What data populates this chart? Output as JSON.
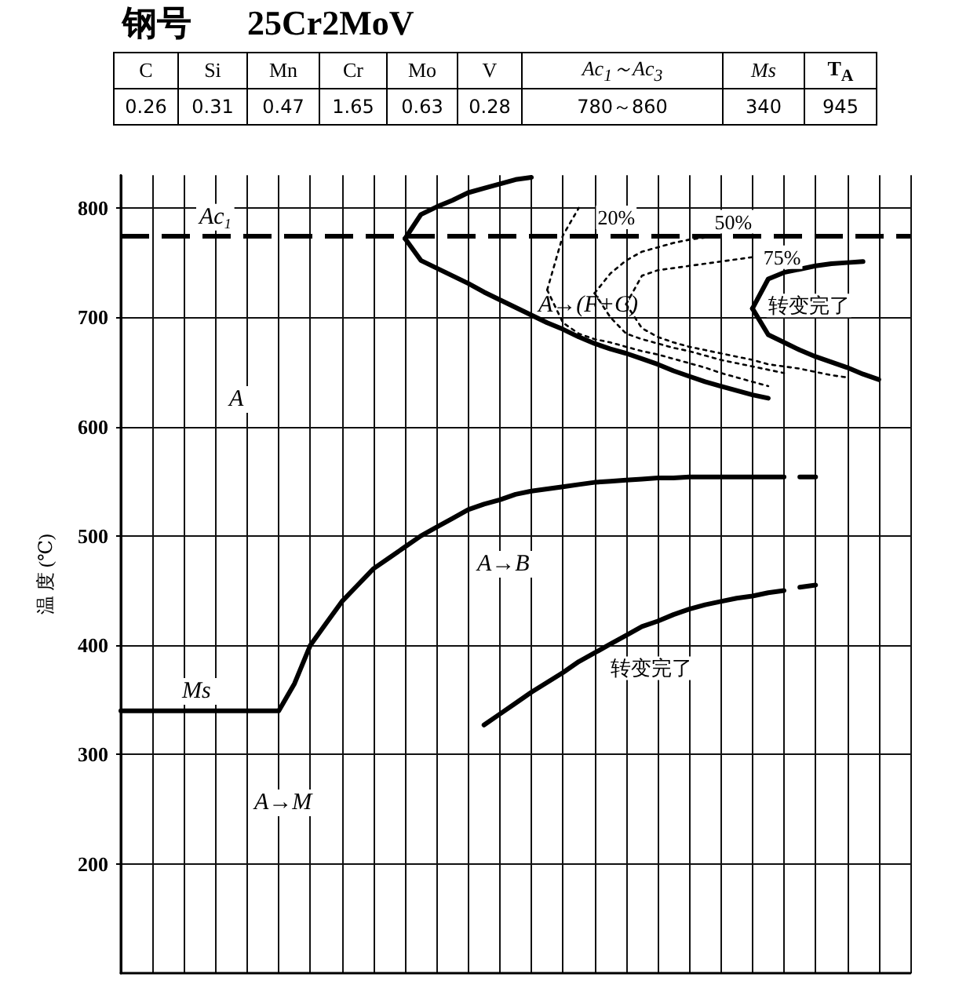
{
  "chart_data": [
    {
      "type": "other",
      "title": "钢号 25Cr2MoV",
      "categories": [
        "C",
        "Si",
        "Mn",
        "Cr",
        "Mo",
        "V",
        "Ac$_{1}$～Ac$_{3}$",
        "Ms",
        "T$_{A}$"
      ],
      "value_labels": [
        "0.26",
        "0.31",
        "0.47",
        "1.65",
        "0.63",
        "0.28",
        "780～860",
        "340",
        "945"
      ]
    },
    {
      "type": "line",
      "ylabel": "温 度 (℃)",
      "tick_labels": "y",
      "grid": true,
      "ylim": [
        100,
        830
      ],
      "yticks": [
        200,
        300,
        400,
        500,
        600,
        700,
        800
      ],
      "categories": [
        null,
        null,
        null,
        null,
        null,
        null,
        null,
        null,
        null,
        null,
        null,
        null,
        null,
        null,
        null,
        null,
        null,
        null,
        null,
        null,
        null,
        null,
        null,
        null,
        null,
        null,
        null,
        null,
        null,
        null,
        null,
        null,
        null,
        null,
        null,
        null,
        null,
        null,
        null,
        null,
        null,
        null,
        null,
        null,
        null,
        null,
        null,
        null,
        null,
        null,
        null
      ],
      "ref_lines": [
        {
          "axis": "y",
          "value": 775,
          "label": "Ac$_{1}$",
          "line_style": "dashed",
          "color": "#000000"
        }
      ],
      "annotations": [
        "A",
        "A→(F+C)",
        "A→B",
        "A→M",
        "Ms"
      ],
      "series": [
        {
          "color": "#000000",
          "line_style": "solid",
          "values": [
            340,
            340,
            340,
            340,
            340,
            340,
            340,
            340,
            340,
            340,
            340,
            365,
            400,
            420,
            440,
            455,
            470,
            480,
            490,
            500,
            508,
            516,
            524,
            529,
            533,
            538,
            541,
            543,
            545,
            547,
            549,
            550,
            551,
            552,
            553,
            553,
            554,
            554,
            554,
            554,
            554,
            554,
            554,
            null,
            null,
            null,
            null,
            null,
            null,
            null,
            null
          ]
        },
        {
          "color": "#000000",
          "line_style": "dashed",
          "values": [
            null,
            null,
            null,
            null,
            null,
            null,
            null,
            null,
            null,
            null,
            null,
            null,
            null,
            null,
            null,
            null,
            null,
            null,
            null,
            null,
            null,
            null,
            null,
            null,
            null,
            null,
            null,
            null,
            null,
            null,
            null,
            null,
            null,
            null,
            null,
            null,
            null,
            null,
            null,
            null,
            null,
            null,
            null,
            554,
            554,
            null,
            null,
            null,
            null,
            null,
            null
          ]
        },
        {
          "name": "转变完了",
          "color": "#000000",
          "line_style": "solid",
          "values": [
            null,
            null,
            null,
            null,
            null,
            null,
            null,
            null,
            null,
            null,
            null,
            null,
            null,
            null,
            null,
            null,
            null,
            null,
            null,
            null,
            null,
            null,
            null,
            327,
            337,
            347,
            357,
            366,
            375,
            385,
            393,
            401,
            409,
            417,
            422,
            428,
            433,
            437,
            440,
            443,
            445,
            448,
            450,
            null,
            null,
            null,
            null,
            null,
            null,
            null,
            null
          ]
        },
        {
          "color": "#000000",
          "line_style": "dashed",
          "values": [
            null,
            null,
            null,
            null,
            null,
            null,
            null,
            null,
            null,
            null,
            null,
            null,
            null,
            null,
            null,
            null,
            null,
            null,
            null,
            null,
            null,
            null,
            null,
            null,
            null,
            null,
            null,
            null,
            null,
            null,
            null,
            null,
            null,
            null,
            null,
            null,
            null,
            null,
            null,
            null,
            null,
            null,
            null,
            453,
            455,
            null,
            null,
            null,
            null,
            null,
            null
          ]
        },
        {
          "color": "#000000",
          "line_style": "solid",
          "values": [
            null,
            null,
            null,
            null,
            null,
            null,
            null,
            null,
            null,
            null,
            null,
            null,
            null,
            null,
            null,
            null,
            null,
            null,
            772,
            794,
            801,
            807,
            814,
            818,
            822,
            826,
            828,
            null,
            null,
            null,
            null,
            null,
            null,
            null,
            null,
            null,
            null,
            null,
            null,
            null,
            null,
            null,
            null,
            null,
            null,
            null,
            null,
            null,
            null,
            null,
            null
          ]
        },
        {
          "color": "#000000",
          "line_style": "solid",
          "values": [
            null,
            null,
            null,
            null,
            null,
            null,
            null,
            null,
            null,
            null,
            null,
            null,
            null,
            null,
            null,
            null,
            null,
            null,
            772,
            752,
            745,
            738,
            731,
            723,
            716,
            709,
            702,
            695,
            689,
            682,
            676,
            671,
            667,
            662,
            657,
            651,
            646,
            641,
            637,
            633,
            629,
            626,
            null,
            null,
            null,
            null,
            null,
            null,
            null,
            null,
            null
          ]
        },
        {
          "name": "转变完了",
          "color": "#000000",
          "line_style": "solid",
          "values": [
            null,
            null,
            null,
            null,
            null,
            null,
            null,
            null,
            null,
            null,
            null,
            null,
            null,
            null,
            null,
            null,
            null,
            null,
            null,
            null,
            null,
            null,
            null,
            null,
            null,
            null,
            null,
            null,
            null,
            null,
            null,
            null,
            null,
            null,
            null,
            null,
            null,
            null,
            null,
            null,
            708,
            735,
            741,
            744,
            747,
            749,
            750,
            751,
            null,
            null,
            null
          ]
        },
        {
          "color": "#000000",
          "line_style": "solid",
          "values": [
            null,
            null,
            null,
            null,
            null,
            null,
            null,
            null,
            null,
            null,
            null,
            null,
            null,
            null,
            null,
            null,
            null,
            null,
            null,
            null,
            null,
            null,
            null,
            null,
            null,
            null,
            null,
            null,
            null,
            null,
            null,
            null,
            null,
            null,
            null,
            null,
            null,
            null,
            null,
            null,
            708,
            684,
            677,
            670,
            664,
            659,
            654,
            648,
            643,
            null,
            null
          ]
        },
        {
          "name": "20%",
          "color": "#000000",
          "line_style": "dotted",
          "values": [
            null,
            null,
            null,
            null,
            null,
            null,
            null,
            null,
            null,
            null,
            null,
            null,
            null,
            null,
            null,
            null,
            null,
            null,
            null,
            null,
            null,
            null,
            null,
            null,
            null,
            null,
            null,
            725,
            775,
            800,
            null,
            null,
            null,
            null,
            null,
            null,
            null,
            null,
            null,
            null,
            null,
            null,
            null,
            null,
            null,
            null,
            null,
            null,
            null,
            null,
            null
          ]
        },
        {
          "color": "#000000",
          "line_style": "dotted",
          "values": [
            null,
            null,
            null,
            null,
            null,
            null,
            null,
            null,
            null,
            null,
            null,
            null,
            null,
            null,
            null,
            null,
            null,
            null,
            null,
            null,
            null,
            null,
            null,
            null,
            null,
            null,
            null,
            725,
            695,
            685,
            680,
            677,
            673,
            669,
            666,
            662,
            658,
            654,
            649,
            645,
            641,
            637,
            null,
            null,
            null,
            null,
            null,
            null,
            null,
            null,
            null
          ]
        },
        {
          "name": "50%",
          "color": "#000000",
          "line_style": "dotted",
          "values": [
            null,
            null,
            null,
            null,
            null,
            null,
            null,
            null,
            null,
            null,
            null,
            null,
            null,
            null,
            null,
            null,
            null,
            null,
            null,
            null,
            null,
            null,
            null,
            null,
            null,
            null,
            null,
            null,
            null,
            null,
            722,
            740,
            752,
            760,
            764,
            768,
            771,
            773,
            null,
            null,
            null,
            null,
            null,
            null,
            null,
            null,
            null,
            null,
            null,
            null,
            null
          ]
        },
        {
          "color": "#000000",
          "line_style": "dotted",
          "values": [
            null,
            null,
            null,
            null,
            null,
            null,
            null,
            null,
            null,
            null,
            null,
            null,
            null,
            null,
            null,
            null,
            null,
            null,
            null,
            null,
            null,
            null,
            null,
            null,
            null,
            null,
            null,
            null,
            null,
            null,
            722,
            700,
            685,
            680,
            676,
            672,
            669,
            665,
            661,
            658,
            655,
            652,
            649,
            null,
            null,
            null,
            null,
            null,
            null,
            null,
            null
          ]
        },
        {
          "name": "75%",
          "color": "#000000",
          "line_style": "dotted",
          "values": [
            null,
            null,
            null,
            null,
            null,
            null,
            null,
            null,
            null,
            null,
            null,
            null,
            null,
            null,
            null,
            null,
            null,
            null,
            null,
            null,
            null,
            null,
            null,
            null,
            null,
            null,
            null,
            null,
            null,
            null,
            null,
            null,
            712,
            738,
            743,
            745,
            747,
            749,
            751,
            753,
            755,
            null,
            null,
            null,
            null,
            null,
            null,
            null,
            null,
            null,
            null
          ]
        },
        {
          "color": "#000000",
          "line_style": "dotted",
          "values": [
            null,
            null,
            null,
            null,
            null,
            null,
            null,
            null,
            null,
            null,
            null,
            null,
            null,
            null,
            null,
            null,
            null,
            null,
            null,
            null,
            null,
            null,
            null,
            null,
            null,
            null,
            null,
            null,
            null,
            null,
            null,
            null,
            712,
            690,
            682,
            677,
            673,
            670,
            667,
            664,
            661,
            657,
            655,
            653,
            650,
            647,
            645,
            null,
            null,
            null,
            null
          ]
        }
      ]
    }
  ]
}
